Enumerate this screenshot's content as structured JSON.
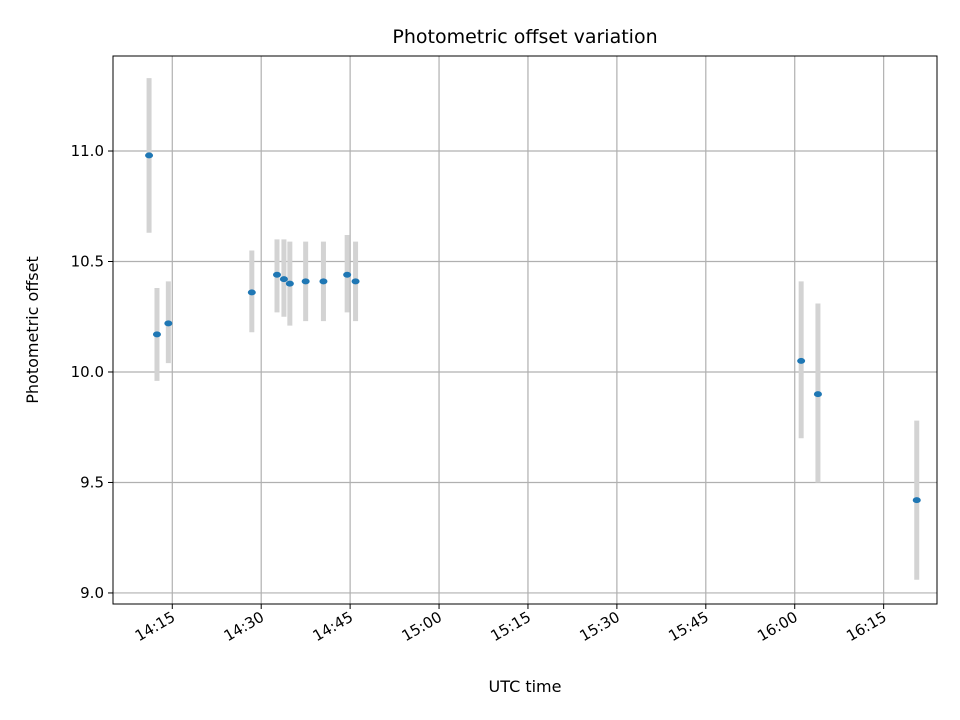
{
  "chart_data": {
    "type": "scatter",
    "title": "Photometric offset variation",
    "xlabel": "UTC time",
    "ylabel": "Photometric offset",
    "x_axis": "time",
    "xlim": [
      "14:05",
      "16:24"
    ],
    "ylim": [
      8.95,
      11.43
    ],
    "x_ticks": [
      "14:15",
      "14:30",
      "14:45",
      "15:00",
      "15:15",
      "15:30",
      "15:45",
      "16:00",
      "16:15"
    ],
    "y_ticks": [
      9.0,
      9.5,
      10.0,
      10.5,
      11.0
    ],
    "y_tick_labels": [
      "9.0",
      "9.5",
      "10.0",
      "10.5",
      "11.0"
    ],
    "grid": true,
    "colors": {
      "point": "#1f77b4",
      "errorbar": "#d3d3d3",
      "grid": "#b0b0b0"
    },
    "points": [
      {
        "x": "14:11:05",
        "y": 10.98,
        "ylow": 10.63,
        "yhigh": 11.33
      },
      {
        "x": "14:12:25",
        "y": 10.17,
        "ylow": 9.96,
        "yhigh": 10.38
      },
      {
        "x": "14:14:20",
        "y": 10.22,
        "ylow": 10.04,
        "yhigh": 10.41
      },
      {
        "x": "14:28:25",
        "y": 10.36,
        "ylow": 10.18,
        "yhigh": 10.55
      },
      {
        "x": "14:32:40",
        "y": 10.44,
        "ylow": 10.27,
        "yhigh": 10.6
      },
      {
        "x": "14:33:50",
        "y": 10.42,
        "ylow": 10.25,
        "yhigh": 10.6
      },
      {
        "x": "14:34:50",
        "y": 10.4,
        "ylow": 10.21,
        "yhigh": 10.59
      },
      {
        "x": "14:37:30",
        "y": 10.41,
        "ylow": 10.23,
        "yhigh": 10.59
      },
      {
        "x": "14:40:30",
        "y": 10.41,
        "ylow": 10.23,
        "yhigh": 10.59
      },
      {
        "x": "14:44:30",
        "y": 10.44,
        "ylow": 10.27,
        "yhigh": 10.62
      },
      {
        "x": "14:45:55",
        "y": 10.41,
        "ylow": 10.23,
        "yhigh": 10.59
      },
      {
        "x": "16:01:05",
        "y": 10.05,
        "ylow": 9.7,
        "yhigh": 10.41
      },
      {
        "x": "16:03:55",
        "y": 9.9,
        "ylow": 9.5,
        "yhigh": 10.31
      },
      {
        "x": "16:20:35",
        "y": 9.42,
        "ylow": 9.06,
        "yhigh": 9.78
      }
    ]
  }
}
